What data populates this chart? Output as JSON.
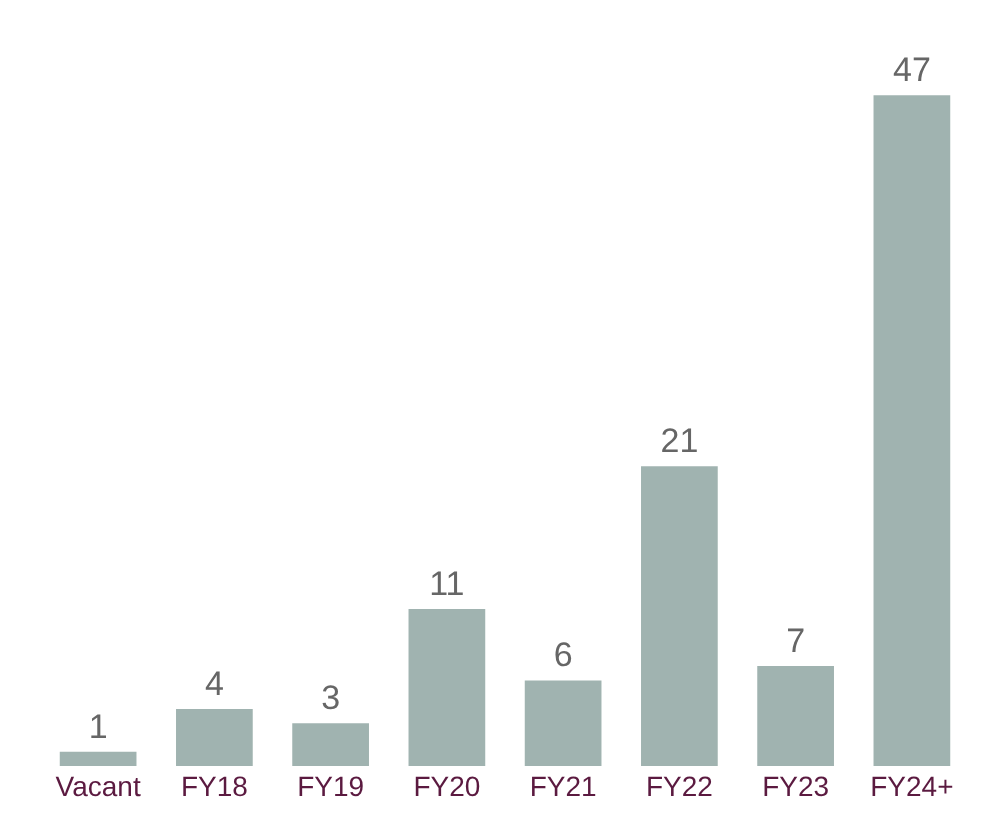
{
  "chart_data": {
    "type": "bar",
    "categories": [
      "Vacant",
      "FY18",
      "FY19",
      "FY20",
      "FY21",
      "FY22",
      "FY23",
      "FY24+"
    ],
    "values": [
      1,
      4,
      3,
      11,
      6,
      21,
      7,
      47
    ],
    "color": "#a0b3b0",
    "data_labels": true
  }
}
